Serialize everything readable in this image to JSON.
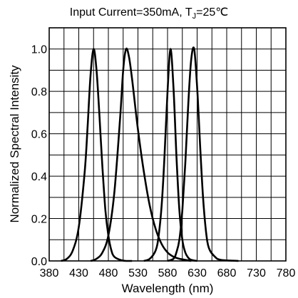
{
  "chart_data": {
    "type": "line",
    "title": "Input Current=350mA, T",
    "title_sub": "J",
    "title_tail": "=25℃",
    "xlabel": "Wavelength (nm)",
    "ylabel": "Normalized Spectral Intensity",
    "xlim": [
      380,
      780
    ],
    "ylim": [
      0,
      1.1
    ],
    "x_tick_labels": [
      "380",
      "430",
      "480",
      "530",
      "580",
      "630",
      "680",
      "730",
      "780"
    ],
    "y_tick_values": [
      0,
      0.2,
      0.4,
      0.6,
      0.8,
      1.0
    ],
    "y_tick_labels": [
      "0.0",
      "0.2",
      "0.4",
      "0.6",
      "0.8",
      "1.0"
    ],
    "grid": true,
    "series": [
      {
        "x": [
          400,
          410,
          420,
          430,
          440,
          445,
          450,
          455,
          460,
          465,
          470,
          475,
          480,
          485,
          490,
          500,
          510,
          520
        ],
        "y": [
          0,
          0.01,
          0.05,
          0.16,
          0.42,
          0.64,
          0.88,
          1.0,
          0.9,
          0.68,
          0.44,
          0.24,
          0.12,
          0.05,
          0.02,
          0.005,
          0.0,
          0.0
        ]
      },
      {
        "x": [
          450,
          460,
          470,
          480,
          490,
          500,
          505,
          510,
          515,
          520,
          530,
          540,
          550,
          560,
          570,
          580,
          590,
          600,
          620
        ],
        "y": [
          0,
          0.01,
          0.04,
          0.12,
          0.32,
          0.68,
          0.9,
          1.0,
          0.96,
          0.86,
          0.62,
          0.42,
          0.26,
          0.15,
          0.08,
          0.04,
          0.02,
          0.01,
          0.0
        ]
      },
      {
        "x": [
          540,
          550,
          560,
          565,
          570,
          575,
          580,
          585,
          590,
          595,
          600,
          605,
          610,
          615,
          620,
          630
        ],
        "y": [
          0,
          0.01,
          0.05,
          0.12,
          0.26,
          0.5,
          0.8,
          1.0,
          0.82,
          0.5,
          0.24,
          0.1,
          0.04,
          0.015,
          0.005,
          0.0
        ]
      },
      {
        "x": [
          580,
          590,
          595,
          600,
          605,
          610,
          615,
          620,
          625,
          630,
          635,
          640,
          645,
          650,
          660,
          670,
          700
        ],
        "y": [
          0,
          0.01,
          0.04,
          0.1,
          0.24,
          0.46,
          0.74,
          0.95,
          1.0,
          0.82,
          0.55,
          0.3,
          0.14,
          0.06,
          0.02,
          0.005,
          0.0
        ]
      }
    ]
  }
}
